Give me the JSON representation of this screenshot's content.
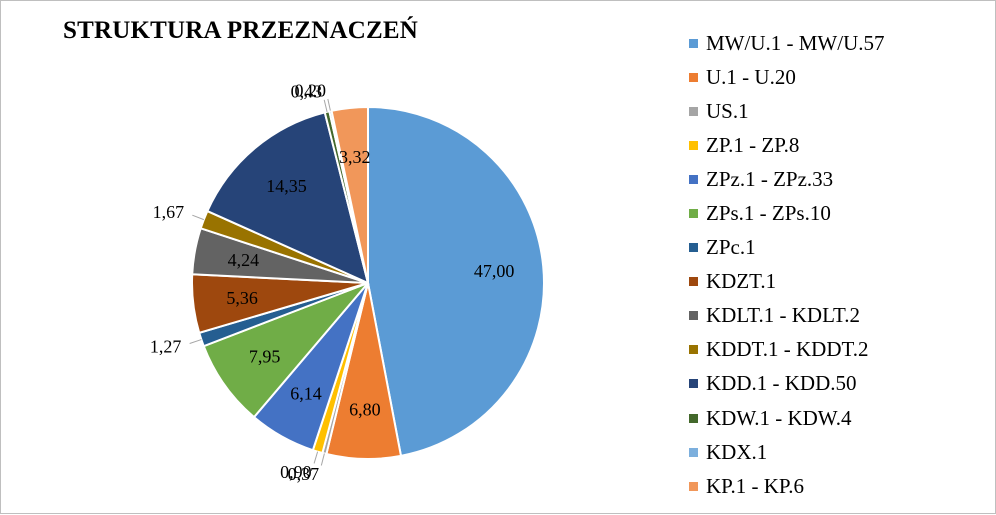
{
  "title": "STRUKTURA PRZEZNACZEŃ",
  "chart_data": {
    "type": "pie",
    "title": "STRUKTURA PRZEZNACZEŃ",
    "legend_position": "right",
    "slices": [
      {
        "label": "MW/U.1 - MW/U.57",
        "value": 47.0,
        "value_label": "47,00",
        "color": "#5b9bd5"
      },
      {
        "label": "U.1 - U.20",
        "value": 6.8,
        "value_label": "6,80",
        "color": "#ed7d31"
      },
      {
        "label": "US.1",
        "value": 0.37,
        "value_label": "0,37",
        "color": "#a5a5a5"
      },
      {
        "label": "ZP.1 - ZP.8",
        "value": 0.9,
        "value_label": "0,90",
        "color": "#ffc000"
      },
      {
        "label": "ZPz.1 - ZPz.33",
        "value": 6.14,
        "value_label": "6,14",
        "color": "#4472c4"
      },
      {
        "label": "ZPs.1 - ZPs.10",
        "value": 7.95,
        "value_label": "7,95",
        "color": "#70ad47"
      },
      {
        "label": "ZPc.1",
        "value": 1.27,
        "value_label": "1,27",
        "color": "#255e91"
      },
      {
        "label": "KDZT.1",
        "value": 5.36,
        "value_label": "5,36",
        "color": "#9e480e"
      },
      {
        "label": "KDLT.1 - KDLT.2",
        "value": 4.24,
        "value_label": "4,24",
        "color": "#636363"
      },
      {
        "label": "KDDT.1 - KDDT.2",
        "value": 1.67,
        "value_label": "1,67",
        "color": "#997300"
      },
      {
        "label": "KDD.1 - KDD.50",
        "value": 14.35,
        "value_label": "14,35",
        "color": "#264478"
      },
      {
        "label": "KDW.1 - KDW.4",
        "value": 0.43,
        "value_label": "0,43",
        "color": "#43682b"
      },
      {
        "label": "KDX.1",
        "value": 0.2,
        "value_label": "0,20",
        "color": "#7cafdd"
      },
      {
        "label": "KP.1 - KP.6",
        "value": 3.32,
        "value_label": "3,32",
        "color": "#f1975a"
      }
    ]
  }
}
